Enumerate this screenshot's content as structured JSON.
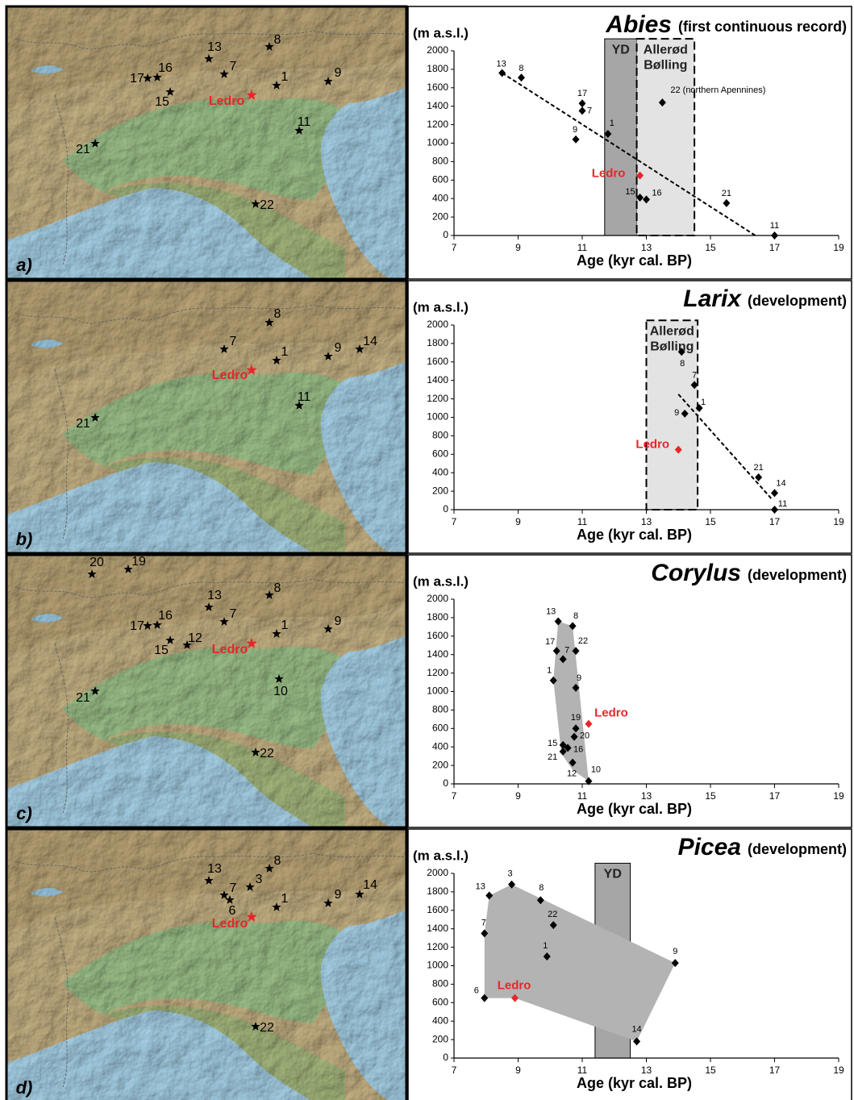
{
  "chart_data": [
    {
      "type": "scatter",
      "title": "Abies",
      "subtitle": "(first continuous record)",
      "y_label": "(m a.s.l.)",
      "x_label": "Age (kyr cal. BP)",
      "xlim": [
        7,
        19
      ],
      "xticks": [
        7,
        9,
        11,
        13,
        15,
        17,
        19
      ],
      "ylim": [
        0,
        2000
      ],
      "yticks": [
        0,
        200,
        400,
        600,
        800,
        1000,
        1200,
        1400,
        1600,
        1800,
        2000
      ],
      "color": "#000000",
      "point_labels": [
        "13",
        "8",
        "17",
        "7",
        "9",
        "1",
        "22 (northern Apennines)",
        "15",
        "16",
        "21",
        "11"
      ],
      "x": [
        8.5,
        9.1,
        11.0,
        11.0,
        10.8,
        11.8,
        13.5,
        12.8,
        13.0,
        15.5,
        17.0
      ],
      "values": [
        1760,
        1710,
        1430,
        1350,
        1040,
        1100,
        1440,
        410,
        390,
        350,
        0
      ],
      "ledro": {
        "label": "Ledro",
        "x": 12.8,
        "value": 650,
        "color": "#e8262a"
      },
      "trend": {
        "x": [
          8.5,
          16.4
        ],
        "values": [
          1760,
          0
        ]
      },
      "bands": [
        {
          "label": [
            "YD"
          ],
          "xlim": [
            11.7,
            12.7
          ],
          "ylim": [
            0,
            2130
          ],
          "color": "#a6a6a6",
          "dashed": false
        },
        {
          "label": [
            "Allerød",
            "Bølling"
          ],
          "xlim": [
            12.7,
            14.5
          ],
          "ylim": [
            0,
            2130
          ],
          "color": "#e3e3e3",
          "dashed": true
        }
      ]
    },
    {
      "type": "scatter",
      "title": "Larix",
      "subtitle": "(development)",
      "y_label": "(m a.s.l.)",
      "x_label": "Age (kyr cal. BP)",
      "xlim": [
        7,
        19
      ],
      "xticks": [
        7,
        9,
        11,
        13,
        15,
        17,
        19
      ],
      "ylim": [
        0,
        2000
      ],
      "yticks": [
        0,
        200,
        400,
        600,
        800,
        1000,
        1200,
        1400,
        1600,
        1800,
        2000
      ],
      "color": "#000000",
      "point_labels": [
        "8",
        "7",
        "1",
        "9",
        "21",
        "14",
        "11"
      ],
      "x": [
        14.1,
        14.5,
        14.65,
        14.2,
        16.5,
        17.0,
        17.0
      ],
      "values": [
        1710,
        1350,
        1100,
        1040,
        350,
        180,
        0
      ],
      "ledro": {
        "label": "Ledro",
        "x": 14.0,
        "value": 650,
        "color": "#e8262a"
      },
      "trend": {
        "x": [
          14.0,
          16.9
        ],
        "values": [
          1250,
          120
        ]
      },
      "bands": [
        {
          "label": [
            "Allerød",
            "Bølling"
          ],
          "xlim": [
            13.0,
            14.6
          ],
          "ylim": [
            0,
            2050
          ],
          "color": "#e3e3e3",
          "dashed": true
        }
      ]
    },
    {
      "type": "scatter",
      "title": "Corylus",
      "subtitle": "(development)",
      "y_label": "(m a.s.l.)",
      "x_label": "Age (kyr cal. BP)",
      "xlim": [
        7,
        19
      ],
      "xticks": [
        7,
        9,
        11,
        13,
        15,
        17,
        19
      ],
      "ylim": [
        0,
        2000
      ],
      "yticks": [
        0,
        200,
        400,
        600,
        800,
        1000,
        1200,
        1400,
        1600,
        1800,
        2000
      ],
      "color": "#000000",
      "point_labels": [
        "13",
        "8",
        "17",
        "7",
        "22",
        "1",
        "9",
        "19",
        "20",
        "15",
        "16",
        "21",
        "12",
        "10"
      ],
      "x": [
        10.25,
        10.7,
        10.2,
        10.4,
        10.8,
        10.1,
        10.8,
        10.8,
        10.75,
        10.4,
        10.55,
        10.4,
        10.7,
        11.2
      ],
      "values": [
        1760,
        1710,
        1440,
        1350,
        1440,
        1120,
        1040,
        600,
        510,
        420,
        390,
        350,
        230,
        30
      ],
      "ledro": {
        "label": "Ledro",
        "x": 11.2,
        "value": 650,
        "color": "#e8262a"
      },
      "hull": {
        "x": [
          10.25,
          10.7,
          11.2,
          10.7,
          10.35,
          10.1
        ],
        "values": [
          1760,
          1710,
          30,
          150,
          330,
          1120
        ],
        "color": "#b3b3b3"
      }
    },
    {
      "type": "scatter",
      "title": "Picea",
      "subtitle": "(development)",
      "y_label": "(m a.s.l.)",
      "x_label": "Age (kyr cal. BP)",
      "xlim": [
        7,
        19
      ],
      "xticks": [
        7,
        9,
        11,
        13,
        15,
        17,
        19
      ],
      "ylim": [
        0,
        2000
      ],
      "yticks": [
        0,
        200,
        400,
        600,
        800,
        1000,
        1200,
        1400,
        1600,
        1800,
        2000
      ],
      "color": "#000000",
      "point_labels": [
        "13",
        "3",
        "8",
        "22",
        "7",
        "1",
        "9",
        "6",
        "14"
      ],
      "x": [
        8.1,
        8.8,
        9.7,
        10.1,
        7.95,
        9.9,
        13.9,
        7.95,
        12.7
      ],
      "values": [
        1760,
        1880,
        1710,
        1440,
        1350,
        1100,
        1030,
        650,
        180
      ],
      "ledro": {
        "label": "Ledro",
        "x": 8.9,
        "value": 650,
        "color": "#e8262a"
      },
      "hull": {
        "x": [
          7.95,
          8.9,
          12.7,
          13.9,
          8.8,
          8.1,
          7.95
        ],
        "values": [
          650,
          650,
          180,
          1030,
          1880,
          1760,
          1350
        ],
        "color": "#b3b3b3"
      },
      "bands": [
        {
          "label": [
            "YD"
          ],
          "xlim": [
            11.4,
            12.5
          ],
          "ylim": [
            0,
            2110
          ],
          "color": "#a6a6a6",
          "dashed": false
        }
      ]
    }
  ],
  "maps": [
    {
      "panel": "a)",
      "ledro": "Ledro",
      "sites": [
        "13",
        "8",
        "16",
        "17",
        "7",
        "1",
        "9",
        "15",
        "11",
        "21",
        "22"
      ]
    },
    {
      "panel": "b)",
      "ledro": "Ledro",
      "sites": [
        "8",
        "7",
        "1",
        "9",
        "14",
        "11",
        "21"
      ]
    },
    {
      "panel": "c)",
      "ledro": "Ledro",
      "sites": [
        "20",
        "19",
        "8",
        "13",
        "7",
        "16",
        "17",
        "1",
        "9",
        "15",
        "12",
        "10",
        "21",
        "22"
      ]
    },
    {
      "panel": "d)",
      "ledro": "Ledro",
      "sites": [
        "8",
        "13",
        "3",
        "7",
        "6",
        "1",
        "9",
        "14",
        "22"
      ]
    }
  ]
}
